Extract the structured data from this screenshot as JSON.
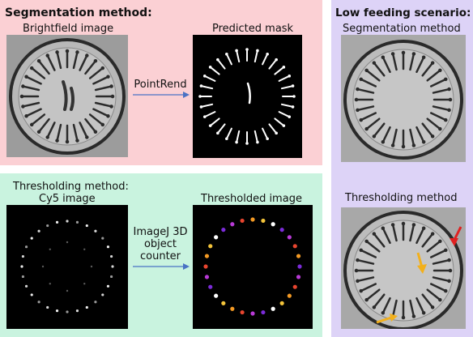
{
  "colors": {
    "segmentation_bg": "#fbd0d4",
    "thresholding_bg": "#c9f3df",
    "low_feeding_bg": "#ddd3f7",
    "arrow_blue": "#4a72c4",
    "mask_black": "#000000",
    "red_arrow": "#e02020",
    "orange_arrow": "#f2b01c"
  },
  "segmentation": {
    "title": "Segmentation method:",
    "left_caption": "Brightfield image",
    "right_caption": "Predicted mask",
    "arrow_label": "PointRend"
  },
  "thresholding": {
    "title": "Thresholding method:",
    "left_caption": "Cy5 image",
    "right_caption": "Thresholded image",
    "arrow_label_lines": [
      "ImageJ 3D",
      "object",
      "counter"
    ]
  },
  "low_feeding": {
    "title": "Low feeding scenario:",
    "top_caption": "Segmentation method",
    "bottom_caption": "Thresholding method"
  },
  "icons": {
    "brightfield": "brightfield-plate-image",
    "mask": "predicted-mask-image",
    "cy5": "cy5-fluorescence-image",
    "thresholded": "thresholded-color-image",
    "arrow": "right-arrow-icon"
  }
}
